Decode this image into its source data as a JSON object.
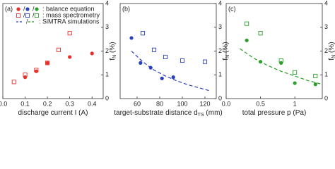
{
  "chart_data": [
    {
      "type": "scatter",
      "panel_label": "(a)",
      "xlabel": [
        "discharge current I (A)"
      ],
      "ylabel": [
        "f",
        "N",
        " (%)"
      ],
      "xlim": [
        0,
        0.45
      ],
      "xticks": [
        {
          "value": 0,
          "label": "0.0"
        },
        0.1,
        0.2,
        0.3,
        0.4
      ],
      "ylim": [
        0,
        4
      ],
      "yticks": [
        0,
        1,
        2,
        3,
        4
      ],
      "series": [
        {
          "marker": "circle",
          "color": "#e8302a",
          "x": [
            0.1,
            0.15,
            0.2,
            0.3,
            0.4
          ],
          "values": [
            0.9,
            1.15,
            1.5,
            1.75,
            1.9
          ]
        },
        {
          "marker": "square",
          "color": "#e8302a",
          "x": [
            0.05,
            0.1,
            0.15,
            0.2,
            0.25,
            0.3
          ],
          "values": [
            0.7,
            1.0,
            1.2,
            1.5,
            2.05,
            2.75
          ]
        }
      ],
      "legend": {
        "separator": "/",
        "entries": [
          {
            "marker": "circle",
            "colors": [
              "#e8302a",
              "#2a3fc0",
              "#2aa02a"
            ],
            "label": ": balance equation"
          },
          {
            "marker": "square",
            "colors": [
              "#e8302a",
              "#2a3fc0",
              "#2aa02a"
            ],
            "label": ": mass spectrometry"
          },
          {
            "marker": "dashed",
            "colors": [
              "#2a3fc0",
              "#2aa02a"
            ],
            "label": ": SiMTRA simulations"
          }
        ]
      }
    },
    {
      "type": "scatter",
      "panel_label": "(b)",
      "xlabel": [
        "target-substrate distance d",
        "TS",
        " (mm)"
      ],
      "ylabel": [
        "f",
        "N",
        " (%)"
      ],
      "xlim": [
        45,
        130
      ],
      "xticks": [
        60,
        80,
        100,
        120
      ],
      "ylim": [
        0,
        4
      ],
      "yticks": [
        0,
        1,
        2,
        3,
        4
      ],
      "series": [
        {
          "marker": "circle",
          "color": "#2a3fc0",
          "x": [
            55,
            63,
            72,
            82,
            92
          ],
          "values": [
            2.55,
            1.5,
            1.3,
            0.85,
            0.9
          ]
        },
        {
          "marker": "square",
          "color": "#2a3fc0",
          "x": [
            65,
            75,
            85,
            100,
            120
          ],
          "values": [
            2.75,
            2.05,
            1.75,
            1.6,
            1.55
          ]
        },
        {
          "marker": "dashed",
          "color": "#2a3fc0",
          "x": [
            55,
            65,
            75,
            85,
            95,
            105,
            115,
            125
          ],
          "values": [
            2.0,
            1.55,
            1.2,
            0.95,
            0.75,
            0.58,
            0.45,
            0.32
          ]
        }
      ]
    },
    {
      "type": "scatter",
      "panel_label": "(c)",
      "xlabel": [
        "total pressure p (Pa)"
      ],
      "ylabel": [
        "f",
        "N",
        " (%)"
      ],
      "xlim": [
        0,
        1.4
      ],
      "xticks": [
        {
          "value": 0,
          "label": "0.0"
        },
        0.5,
        1.0
      ],
      "ylim": [
        0,
        4
      ],
      "yticks": [
        0,
        1,
        2,
        3,
        4
      ],
      "series": [
        {
          "marker": "circle",
          "color": "#2aa02a",
          "x": [
            0.3,
            0.5,
            0.8,
            1.0,
            1.3
          ],
          "values": [
            2.45,
            1.55,
            1.5,
            0.65,
            0.6
          ]
        },
        {
          "marker": "square",
          "color": "#2aa02a",
          "x": [
            0.3,
            0.5,
            0.8,
            1.0,
            1.3
          ],
          "values": [
            3.15,
            2.75,
            1.6,
            1.1,
            0.95
          ]
        },
        {
          "marker": "dashed",
          "color": "#2aa02a",
          "x": [
            0.2,
            0.4,
            0.6,
            0.8,
            1.0,
            1.2,
            1.4
          ],
          "values": [
            2.1,
            1.7,
            1.4,
            1.15,
            0.95,
            0.75,
            0.6
          ]
        }
      ]
    }
  ]
}
